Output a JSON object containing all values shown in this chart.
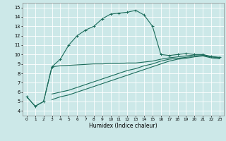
{
  "xlabel": "Humidex (Indice chaleur)",
  "bg_color": "#cce8e8",
  "line_color": "#1a6b5a",
  "grid_color": "#ffffff",
  "xlim": [
    -0.5,
    23.5
  ],
  "ylim": [
    3.5,
    15.5
  ],
  "xticks": [
    0,
    1,
    2,
    3,
    4,
    5,
    6,
    7,
    8,
    9,
    10,
    11,
    12,
    13,
    14,
    15,
    16,
    17,
    18,
    19,
    20,
    21,
    22,
    23
  ],
  "yticks": [
    4,
    5,
    6,
    7,
    8,
    9,
    10,
    11,
    12,
    13,
    14,
    15
  ],
  "curve1_x": [
    0,
    1,
    2,
    3,
    4,
    5,
    6,
    7,
    8,
    9,
    10,
    11,
    12,
    13,
    14,
    15,
    16,
    17,
    18,
    19,
    20,
    21,
    22,
    23
  ],
  "curve1_y": [
    5.5,
    4.5,
    5.0,
    8.7,
    9.5,
    11.0,
    12.0,
    12.6,
    13.0,
    13.8,
    14.3,
    14.4,
    14.5,
    14.7,
    14.2,
    13.0,
    10.0,
    9.9,
    10.0,
    10.1,
    10.0,
    10.0,
    9.8,
    9.7
  ],
  "curve2_x": [
    0,
    1,
    2,
    3,
    4,
    5,
    6,
    7,
    8,
    9,
    10,
    11,
    12,
    13,
    14,
    15,
    16,
    17,
    18,
    19,
    20,
    21,
    22,
    23
  ],
  "curve2_y": [
    5.5,
    4.5,
    5.0,
    8.7,
    8.8,
    8.85,
    8.9,
    8.95,
    9.0,
    9.0,
    9.05,
    9.05,
    9.1,
    9.1,
    9.2,
    9.3,
    9.5,
    9.65,
    9.75,
    9.85,
    9.95,
    9.95,
    9.75,
    9.65
  ],
  "curve3_x": [
    3,
    4,
    5,
    6,
    7,
    8,
    9,
    10,
    11,
    12,
    13,
    14,
    15,
    16,
    17,
    18,
    19,
    20,
    21,
    22,
    23
  ],
  "curve3_y": [
    5.8,
    6.0,
    6.2,
    6.5,
    6.8,
    7.1,
    7.4,
    7.7,
    8.0,
    8.3,
    8.5,
    8.8,
    9.0,
    9.3,
    9.5,
    9.6,
    9.7,
    9.8,
    9.9,
    9.75,
    9.65
  ],
  "curve4_x": [
    3,
    4,
    5,
    6,
    7,
    8,
    9,
    10,
    11,
    12,
    13,
    14,
    15,
    16,
    17,
    18,
    19,
    20,
    21,
    22,
    23
  ],
  "curve4_y": [
    5.2,
    5.5,
    5.7,
    6.0,
    6.3,
    6.6,
    6.9,
    7.2,
    7.5,
    7.8,
    8.1,
    8.4,
    8.7,
    9.0,
    9.3,
    9.5,
    9.6,
    9.75,
    9.85,
    9.65,
    9.55
  ]
}
